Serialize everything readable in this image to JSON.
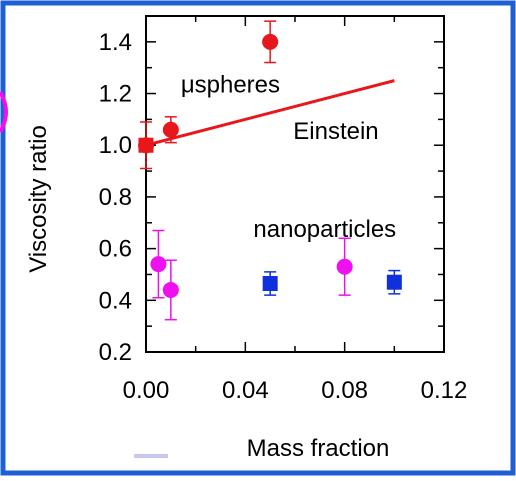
{
  "colors": {
    "frame_border": "#1f5fd6",
    "microspheres": "#e8171b",
    "einstein_line": "#e8171b",
    "nanoparticles_circle": "#ee10ee",
    "nanoparticles_square": "#1030dd",
    "axis": "#000000"
  },
  "chart_data": {
    "type": "scatter",
    "title": "",
    "xlabel": "Mass fraction",
    "ylabel": "Viscosity ratio",
    "xlim": [
      0.0,
      0.12
    ],
    "ylim": [
      0.2,
      1.5
    ],
    "x_ticks": [
      {
        "value": 0.0,
        "label": "0.00"
      },
      {
        "value": 0.04,
        "label": "0.04"
      },
      {
        "value": 0.08,
        "label": "0.08"
      },
      {
        "value": 0.12,
        "label": "0.12"
      }
    ],
    "y_ticks": [
      {
        "value": 0.2,
        "label": "0.2"
      },
      {
        "value": 0.4,
        "label": "0.4"
      },
      {
        "value": 0.6,
        "label": "0.6"
      },
      {
        "value": 0.8,
        "label": "0.8"
      },
      {
        "value": 1.0,
        "label": "1.0"
      },
      {
        "value": 1.2,
        "label": "1.2"
      },
      {
        "value": 1.4,
        "label": "1.4"
      }
    ],
    "series": [
      {
        "name": "",
        "marker": "circle",
        "color": "#e8171b",
        "points": [
          {
            "x": 0.0,
            "y": 1.0,
            "err": 0.09
          },
          {
            "x": 0.01,
            "y": 1.06,
            "err": 0.05
          },
          {
            "x": 0.05,
            "y": 1.4,
            "err": 0.08
          }
        ]
      },
      {
        "name": "",
        "marker": "square",
        "color": "#e8171b",
        "points": [
          {
            "x": 0.0,
            "y": 1.0,
            "err": 0.0
          }
        ]
      },
      {
        "name": "",
        "marker": "circle",
        "color": "#ee10ee",
        "points": [
          {
            "x": 0.005,
            "y": 0.54,
            "err": 0.13
          },
          {
            "x": 0.01,
            "y": 0.44,
            "err": 0.115
          },
          {
            "x": 0.08,
            "y": 0.53,
            "err": 0.11
          }
        ]
      },
      {
        "name": "",
        "marker": "square",
        "color": "#1030dd",
        "points": [
          {
            "x": 0.05,
            "y": 0.465,
            "err": 0.045
          },
          {
            "x": 0.1,
            "y": 0.47,
            "err": 0.045
          }
        ]
      }
    ],
    "lines": [
      {
        "name": "",
        "color": "#e8171b",
        "x": [
          0.0,
          0.1
        ],
        "y": [
          1.0,
          1.25
        ]
      }
    ],
    "annotations": [
      {
        "text": "μspheres",
        "x": 0.034,
        "y": 1.235
      },
      {
        "text": "Einstein",
        "x": 0.0765,
        "y": 1.055
      },
      {
        "text": "nanoparticles",
        "x": 0.072,
        "y": 0.675
      }
    ],
    "grid": false,
    "legend": "none"
  }
}
